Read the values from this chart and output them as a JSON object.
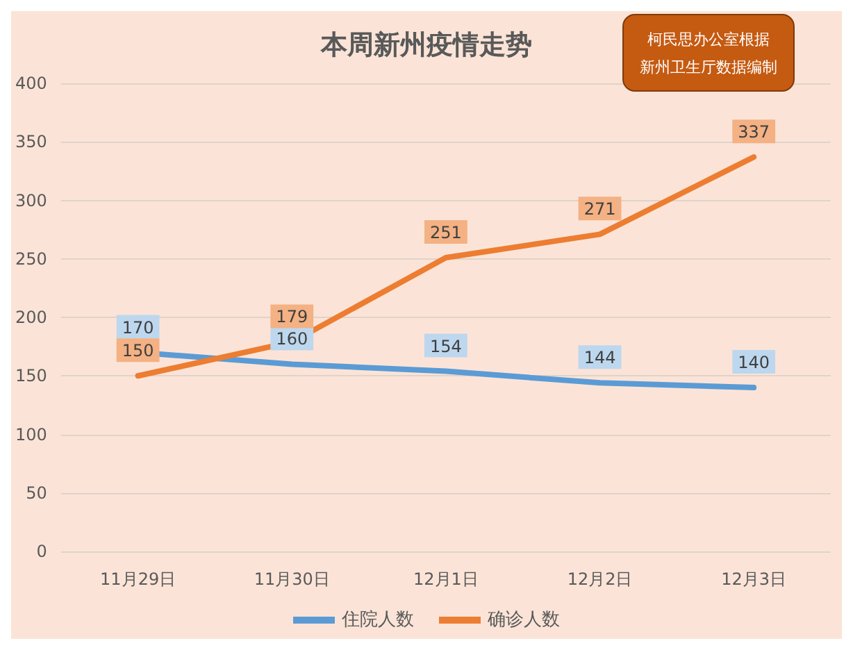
{
  "chart_data": {
    "type": "line",
    "title": "本周新州疫情走势",
    "annotations": [
      "柯民思办公室根据新州卫生厅数据编制"
    ],
    "categories": [
      "11月29日",
      "11月30日",
      "12月1日",
      "12月2日",
      "12月3日"
    ],
    "series": [
      {
        "name": "住院人数",
        "color": "#5b9bd5",
        "values": [
          170,
          160,
          154,
          144,
          140
        ]
      },
      {
        "name": "确诊人数",
        "color": "#ed7d31",
        "values": [
          150,
          179,
          251,
          271,
          337
        ]
      }
    ],
    "ylim": [
      0,
      400
    ],
    "yticks": [
      0,
      50,
      100,
      150,
      200,
      250,
      300,
      350,
      400
    ],
    "grid": "y",
    "legend": "bottom",
    "marker": "none",
    "line_style": "solid",
    "data_labels": true
  }
}
